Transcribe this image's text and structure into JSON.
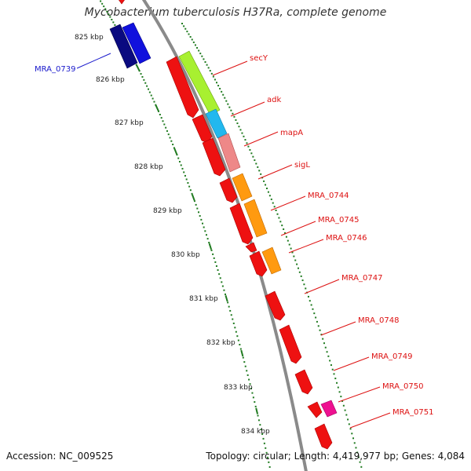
{
  "title": "Mycobacterium tuberculosis H37Ra, complete genome",
  "footer": {
    "accession": "Accession: NC_009525",
    "summary": "Topology: circular; Length: 4,419,977 bp; Genes: 4,084"
  },
  "scale": {
    "unit": "kbp",
    "ticks": [
      "825 kbp",
      "826 kbp",
      "827 kbp",
      "828 kbp",
      "829 kbp",
      "830 kbp",
      "831 kbp",
      "832 kbp",
      "833 kbp",
      "834 kbp"
    ]
  },
  "colors": {
    "backbone": "#8a8a8a",
    "scale_dots": "#1f7a1f",
    "reverse_label": "#1a1acc",
    "forward_label": "#dd1111",
    "gene_red": "#ee1111",
    "secY": "#a8f030",
    "adk": "#22b8ee",
    "mapA": "#ee8888",
    "sigL_and_0744": "#ff9a10",
    "MRA_0750": "#ee1090",
    "MRA_0739": "#1111dd",
    "MRA_0739_dark": "#0a0a80"
  },
  "gene_labels": [
    {
      "name": "MRA_0739",
      "strand": "reverse",
      "color": "#1a1acc"
    },
    {
      "name": "secY",
      "strand": "forward",
      "color": "#dd1111"
    },
    {
      "name": "adk",
      "strand": "forward",
      "color": "#dd1111"
    },
    {
      "name": "mapA",
      "strand": "forward",
      "color": "#dd1111"
    },
    {
      "name": "sigL",
      "strand": "forward",
      "color": "#dd1111"
    },
    {
      "name": "MRA_0744",
      "strand": "forward",
      "color": "#dd1111"
    },
    {
      "name": "MRA_0745",
      "strand": "forward",
      "color": "#dd1111"
    },
    {
      "name": "MRA_0746",
      "strand": "forward",
      "color": "#dd1111"
    },
    {
      "name": "MRA_0747",
      "strand": "forward",
      "color": "#dd1111"
    },
    {
      "name": "MRA_0748",
      "strand": "forward",
      "color": "#dd1111"
    },
    {
      "name": "MRA_0749",
      "strand": "forward",
      "color": "#dd1111"
    },
    {
      "name": "MRA_0750",
      "strand": "forward",
      "color": "#dd1111"
    },
    {
      "name": "MRA_0751",
      "strand": "forward",
      "color": "#dd1111"
    }
  ]
}
